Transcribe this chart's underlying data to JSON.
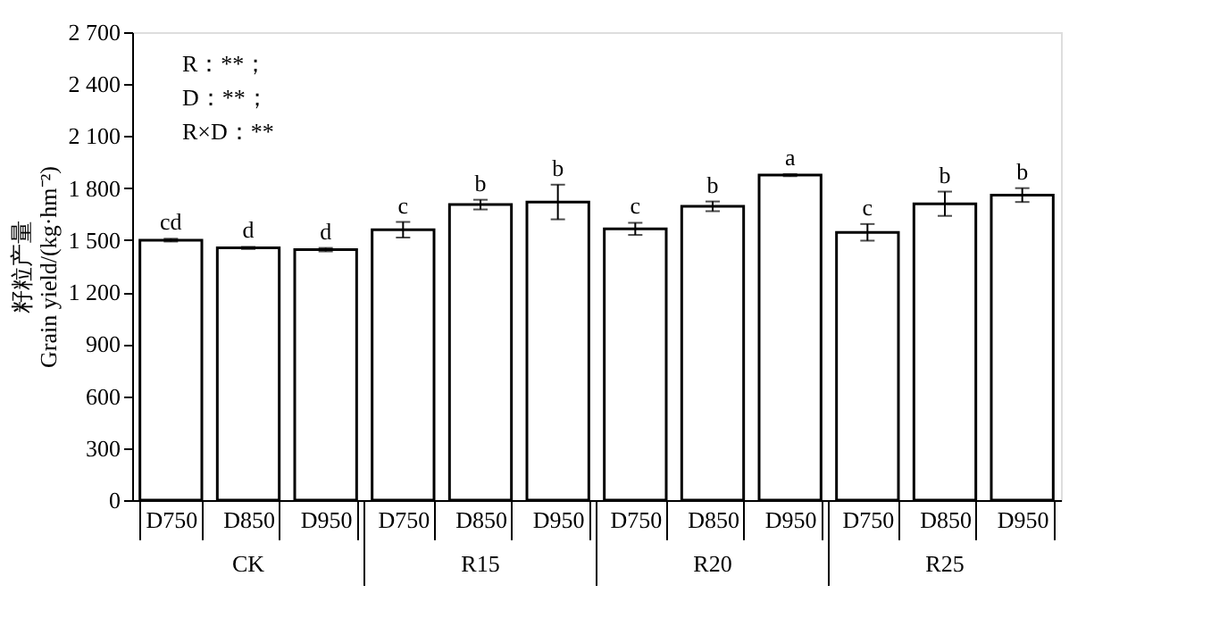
{
  "chart_data": {
    "type": "bar",
    "ylabel": "籽粒产量\nGrain yield/(kg·hm⁻²)",
    "categories": [
      "D750",
      "D850",
      "D950",
      "D750",
      "D850",
      "D950",
      "D750",
      "D850",
      "D950",
      "D750",
      "D850",
      "D950"
    ],
    "values": [
      1500,
      1455,
      1445,
      1560,
      1705,
      1720,
      1565,
      1695,
      1875,
      1545,
      1710,
      1760
    ],
    "errors": [
      8,
      6,
      10,
      45,
      28,
      100,
      35,
      28,
      6,
      48,
      70,
      40
    ],
    "value_labels": [
      "cd",
      "d",
      "d",
      "c",
      "b",
      "b",
      "c",
      "b",
      "a",
      "c",
      "b",
      "b"
    ],
    "color": "#ffffff",
    "ylim": [
      0,
      2700
    ],
    "yticks": [
      0,
      300,
      600,
      900,
      {
        "value": 1200,
        "label": "1 200"
      },
      {
        "value": 1500,
        "label": "1 500"
      },
      {
        "value": 1800,
        "label": "1 800"
      },
      {
        "value": 2100,
        "label": "2 100"
      },
      {
        "value": 2400,
        "label": "2 400"
      },
      {
        "value": 2700,
        "label": "2 700"
      }
    ],
    "annotations": [
      "R：**；",
      "D：**；",
      "R×D：**",
      "CK",
      "R15",
      "R20",
      "R25"
    ],
    "grid": false
  }
}
